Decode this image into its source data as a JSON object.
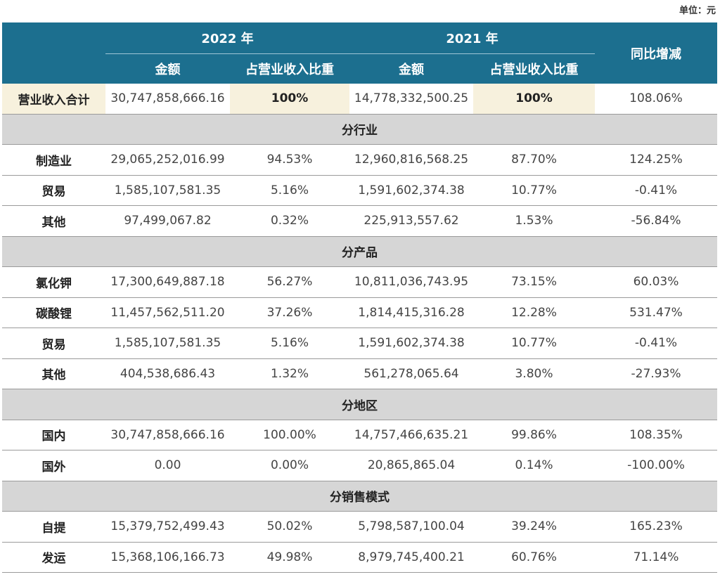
{
  "unit_label": "单位：元",
  "header": {
    "year_2022": "2022 年",
    "year_2021": "2021 年",
    "change": "同比增减",
    "amount_2022": "金额",
    "ratio_2022": "占营业收入比重",
    "amount_2021": "金额",
    "ratio_2021": "占营业收入比重"
  },
  "total": {
    "label": "营业收入合计",
    "amount_2022": "30,747,858,666.16",
    "ratio_2022": "100%",
    "amount_2021": "14,778,332,500.25",
    "ratio_2021": "100%",
    "change": "108.06%"
  },
  "sections": [
    {
      "title": "分行业",
      "rows": [
        {
          "label": "制造业",
          "amount_2022": "29,065,252,016.99",
          "ratio_2022": "94.53%",
          "amount_2021": "12,960,816,568.25",
          "ratio_2021": "87.70%",
          "change": "124.25%"
        },
        {
          "label": "贸易",
          "amount_2022": "1,585,107,581.35",
          "ratio_2022": "5.16%",
          "amount_2021": "1,591,602,374.38",
          "ratio_2021": "10.77%",
          "change": "-0.41%"
        },
        {
          "label": "其他",
          "amount_2022": "97,499,067.82",
          "ratio_2022": "0.32%",
          "amount_2021": "225,913,557.62",
          "ratio_2021": "1.53%",
          "change": "-56.84%"
        }
      ]
    },
    {
      "title": "分产品",
      "rows": [
        {
          "label": "氯化钾",
          "amount_2022": "17,300,649,887.18",
          "ratio_2022": "56.27%",
          "amount_2021": "10,811,036,743.95",
          "ratio_2021": "73.15%",
          "change": "60.03%"
        },
        {
          "label": "碳酸锂",
          "amount_2022": "11,457,562,511.20",
          "ratio_2022": "37.26%",
          "amount_2021": "1,814,415,316.28",
          "ratio_2021": "12.28%",
          "change": "531.47%"
        },
        {
          "label": "贸易",
          "amount_2022": "1,585,107,581.35",
          "ratio_2022": "5.16%",
          "amount_2021": "1,591,602,374.38",
          "ratio_2021": "10.77%",
          "change": "-0.41%"
        },
        {
          "label": "其他",
          "amount_2022": "404,538,686.43",
          "ratio_2022": "1.32%",
          "amount_2021": "561,278,065.64",
          "ratio_2021": "3.80%",
          "change": "-27.93%"
        }
      ]
    },
    {
      "title": "分地区",
      "rows": [
        {
          "label": "国内",
          "amount_2022": "30,747,858,666.16",
          "ratio_2022": "100.00%",
          "amount_2021": "14,757,466,635.21",
          "ratio_2021": "99.86%",
          "change": "108.35%"
        },
        {
          "label": "国外",
          "amount_2022": "0.00",
          "ratio_2022": "0.00%",
          "amount_2021": "20,865,865.04",
          "ratio_2021": "0.14%",
          "change": "-100.00%"
        }
      ]
    },
    {
      "title": "分销售模式",
      "rows": [
        {
          "label": "自提",
          "amount_2022": "15,379,752,499.43",
          "ratio_2022": "50.02%",
          "amount_2021": "5,798,587,100.04",
          "ratio_2021": "39.24%",
          "change": "165.23%"
        },
        {
          "label": "发运",
          "amount_2022": "15,368,106,166.73",
          "ratio_2022": "49.98%",
          "amount_2021": "8,979,745,400.21",
          "ratio_2021": "60.76%",
          "change": "71.14%"
        }
      ]
    }
  ]
}
